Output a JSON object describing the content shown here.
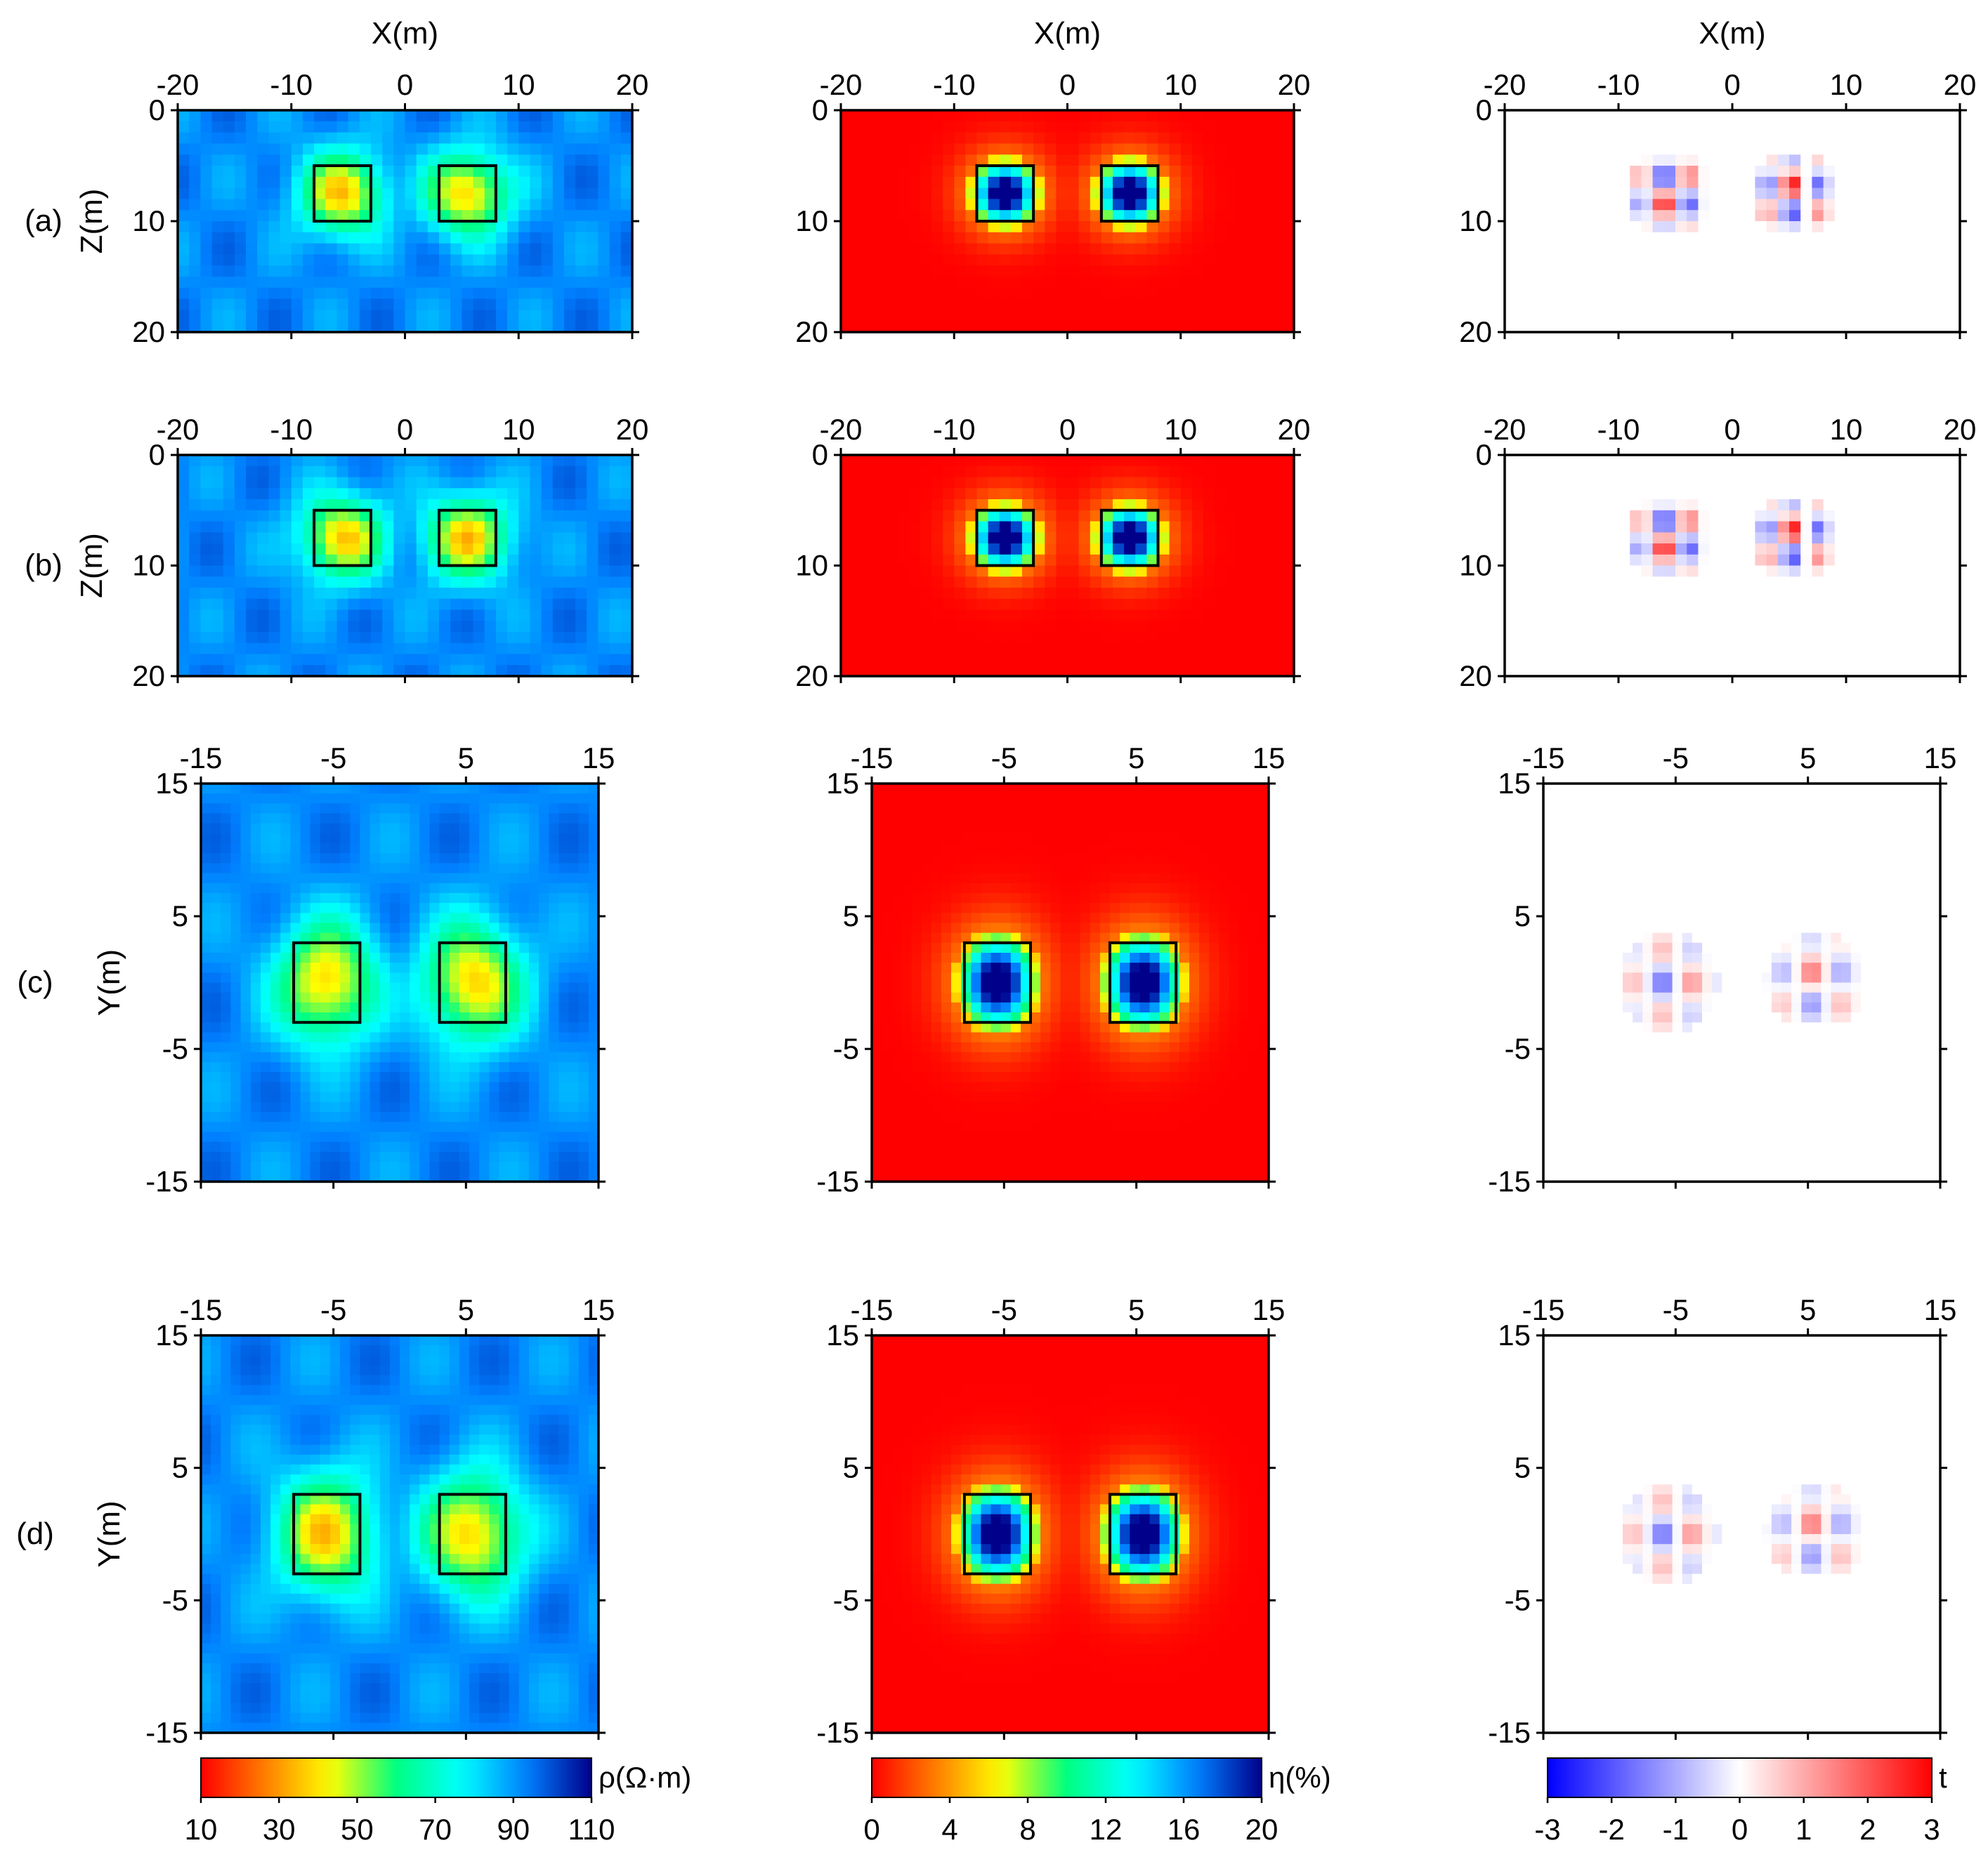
{
  "chart_data": {
    "type": "heatmap",
    "description_rows": [
      "(a)",
      "(b)",
      "(c)",
      "(d)"
    ],
    "columns": [
      {
        "quantity": "resistivity",
        "colorbar_label": "ρ(Ω·m)",
        "colormap": "jet_reversed",
        "range": [
          10,
          110
        ],
        "ticks": [
          "10",
          "30",
          "50",
          "70",
          "90",
          "110"
        ],
        "background_value": 100,
        "anomaly_value": 40
      },
      {
        "quantity": "chargeability",
        "colorbar_label": "η(%)",
        "colormap": "jet_reversed",
        "range": [
          0,
          20
        ],
        "ticks": [
          "0",
          "4",
          "8",
          "12",
          "16",
          "20"
        ],
        "background_value": 0,
        "anomaly_value": 20
      },
      {
        "quantity": "t-statistic",
        "colorbar_label": "t",
        "colormap": "blue_white_red",
        "range": [
          -3,
          3
        ],
        "ticks": [
          "-3",
          "-2",
          "-1",
          "0",
          "1",
          "2",
          "3"
        ],
        "background_value": 0
      }
    ],
    "rows": [
      {
        "label": "(a)",
        "section": "XZ",
        "xlabel": "X(m)",
        "ylabel": "Z(m)",
        "xlim": [
          -20,
          20
        ],
        "ylim": [
          0,
          20
        ],
        "xticks": [
          "-20",
          "-10",
          "0",
          "10",
          "20"
        ],
        "yticks": [
          "0",
          "10",
          "20"
        ],
        "anomaly_boxes": [
          {
            "x": [
              -8,
              -3
            ],
            "y": [
              5,
              10
            ]
          },
          {
            "x": [
              3,
              8
            ],
            "y": [
              5,
              10
            ]
          }
        ]
      },
      {
        "label": "(b)",
        "section": "XZ",
        "xlabel": "",
        "ylabel": "Z(m)",
        "xlim": [
          -20,
          20
        ],
        "ylim": [
          0,
          20
        ],
        "xticks": [
          "-20",
          "-10",
          "0",
          "10",
          "20"
        ],
        "yticks": [
          "0",
          "10",
          "20"
        ],
        "anomaly_boxes": [
          {
            "x": [
              -8,
              -3
            ],
            "y": [
              5,
              10
            ]
          },
          {
            "x": [
              3,
              8
            ],
            "y": [
              5,
              10
            ]
          }
        ]
      },
      {
        "label": "(c)",
        "section": "XY",
        "xlabel": "",
        "ylabel": "Y(m)",
        "xlim": [
          -15,
          15
        ],
        "ylim": [
          -15,
          15
        ],
        "xticks": [
          "-15",
          "-5",
          "5",
          "15"
        ],
        "yticks": [
          "15",
          "5",
          "-5",
          "-15"
        ],
        "anomaly_boxes": [
          {
            "x": [
              -8,
              -3
            ],
            "y": [
              -3,
              3
            ]
          },
          {
            "x": [
              3,
              8
            ],
            "y": [
              -3,
              3
            ]
          }
        ]
      },
      {
        "label": "(d)",
        "section": "XY",
        "xlabel": "",
        "ylabel": "Y(m)",
        "xlim": [
          -15,
          15
        ],
        "ylim": [
          -15,
          15
        ],
        "xticks": [
          "-15",
          "-5",
          "5",
          "15"
        ],
        "yticks": [
          "15",
          "5",
          "-5",
          "-15"
        ],
        "anomaly_boxes": [
          {
            "x": [
              -8,
              -3
            ],
            "y": [
              -3,
              3
            ]
          },
          {
            "x": [
              3,
              8
            ],
            "y": [
              -3,
              3
            ]
          }
        ]
      }
    ]
  }
}
